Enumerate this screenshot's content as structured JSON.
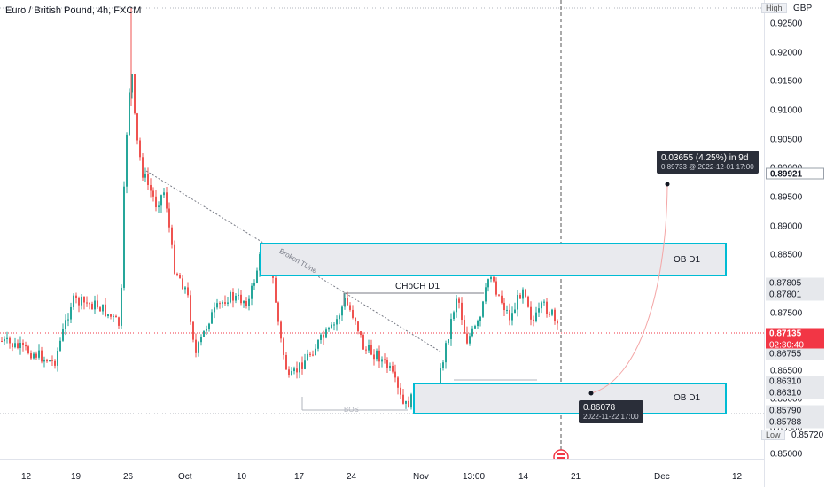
{
  "header": {
    "symbol_title": "Euro / British Pound, 4h, FXCM"
  },
  "price_axis": {
    "currency": "GBP",
    "ticks": [
      "0.92500",
      "0.92000",
      "0.91500",
      "0.91000",
      "0.90500",
      "0.90000",
      "0.89500",
      "0.89000",
      "0.88500",
      "0.88000",
      "0.87500",
      "0.86500",
      "0.86000",
      "0.85500",
      "0.85000"
    ],
    "high_label": "High",
    "low_label": "Low",
    "tags": {
      "target": "0.89921",
      "zone_top_1": "0.87805",
      "zone_top_2": "0.87801",
      "current_price": "0.87135",
      "countdown": "02:30:40",
      "prior_close": "0.86755",
      "ob_top_1": "0.86310",
      "ob_top_2": "0.86310",
      "ob_bottom_1": "0.85790",
      "ob_bottom_2": "0.85788",
      "low_value": "0.85720"
    }
  },
  "time_axis": {
    "labels": [
      "12",
      "19",
      "26",
      "Oct",
      "10",
      "17",
      "24",
      "Nov",
      "13:00",
      "14",
      "21",
      "Dec",
      "12"
    ]
  },
  "annotations": {
    "trendline_label": "Broken TLine",
    "choch_label": "CHoCH D1",
    "bos_label": "BOS",
    "ob_upper_label": "OB D1",
    "ob_lower_label": "OB D1",
    "projection": {
      "line1": "0.03655 (4.25%) in 9d",
      "line2": "0.89733 @ 2022-12-01  17:00"
    },
    "low_callout": {
      "price": "0.86078",
      "date": "2022-11-22 17:00"
    }
  },
  "colors": {
    "up": "#26a69a",
    "down": "#ef5350",
    "zone_border": "#00bcd4",
    "zone_fill": "#e9eaee",
    "current": "#f23645"
  },
  "icons": {
    "event_marker": "economic-event-icon"
  }
}
